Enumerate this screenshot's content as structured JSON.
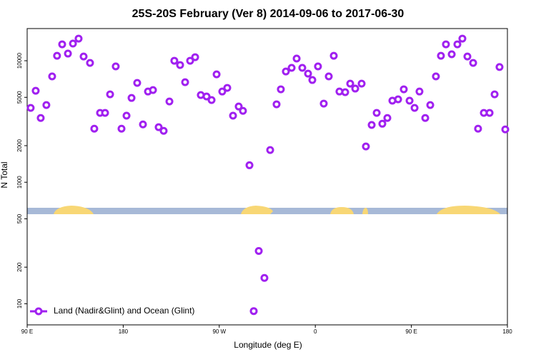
{
  "chart_data": {
    "type": "scatter",
    "title": "25S-20S February (Ver 8)   2014-09-06 to 2017-06-30",
    "x_label": "Longitude (deg E)",
    "y_label": "N Total",
    "log_y": true,
    "legend": "bottom-left",
    "xlim": [
      90,
      540
    ],
    "ylim": [
      67,
      18400
    ],
    "xticks": [
      {
        "value": 90,
        "label": "90 E"
      },
      {
        "value": 180,
        "label": "180"
      },
      {
        "value": 270,
        "label": "90 W"
      },
      {
        "value": 360,
        "label": "0"
      },
      {
        "value": 450,
        "label": "90 E"
      },
      {
        "value": 540,
        "label": "180"
      }
    ],
    "yticks": [
      100,
      200,
      500,
      1000,
      2000,
      5000,
      10000
    ],
    "x": [
      93.3,
      98,
      102.7,
      108,
      113.4,
      118,
      122.8,
      128.2,
      132.9,
      138.2,
      142.9,
      148.9,
      152.9,
      158.3,
      163,
      167.7,
      173,
      178.4,
      183.1,
      187.8,
      193.1,
      198.5,
      203.2,
      207.9,
      213.2,
      217.9,
      223.3,
      227.9,
      233.3,
      238,
      242.7,
      247.4,
      252.7,
      258.1,
      262.8,
      267.5,
      272.8,
      277.5,
      282.9,
      288.2,
      292.2,
      298.3,
      302.3,
      307,
      312.3,
      317.7,
      323.7,
      327.7,
      332.4,
      337.8,
      342.5,
      347.8,
      353.2,
      357.2,
      362.5,
      367.9,
      372.6,
      377.3,
      382.6,
      388,
      392.7,
      397.4,
      403.4,
      407.4,
      412.8,
      417.5,
      422.8,
      427.5,
      432.2,
      437.6,
      442.9,
      448.3,
      453,
      457.6,
      463,
      467.7,
      473,
      477.7,
      482.4,
      487.8,
      493.1,
      497.8,
      502.5,
      507.9,
      512.5,
      517.9,
      523.3,
      528,
      532.6,
      538
    ],
    "series": [
      {
        "name": "Land (Nadir&Glint) and Ocean (Glint)",
        "color": "#a020f0",
        "values": [
          4090,
          5660,
          3380,
          4320,
          7430,
          10990,
          13650,
          11450,
          13840,
          15210,
          10840,
          9600,
          2760,
          3720,
          3720,
          5290,
          8980,
          2760,
          3530,
          4940,
          6570,
          2990,
          5580,
          5740,
          2840,
          2650,
          4620,
          10000,
          9220,
          6660,
          10000,
          10700,
          5220,
          5080,
          4750,
          7730,
          5580,
          5980,
          3530,
          4200,
          3870,
          1380,
          87,
          272,
          163,
          1840,
          4380,
          5820,
          8160,
          8740,
          10420,
          8740,
          7830,
          6940,
          8980,
          4440,
          7430,
          10990,
          5580,
          5510,
          6480,
          5900,
          6480,
          1970,
          2960,
          3720,
          3030,
          3380,
          4690,
          4810,
          5820,
          4690,
          4090,
          5580,
          3380,
          4320,
          7430,
          10990,
          13650,
          11300,
          13650,
          15210,
          10840,
          9600,
          2760,
          3720,
          3720,
          5290,
          8880,
          2720
        ]
      }
    ]
  }
}
